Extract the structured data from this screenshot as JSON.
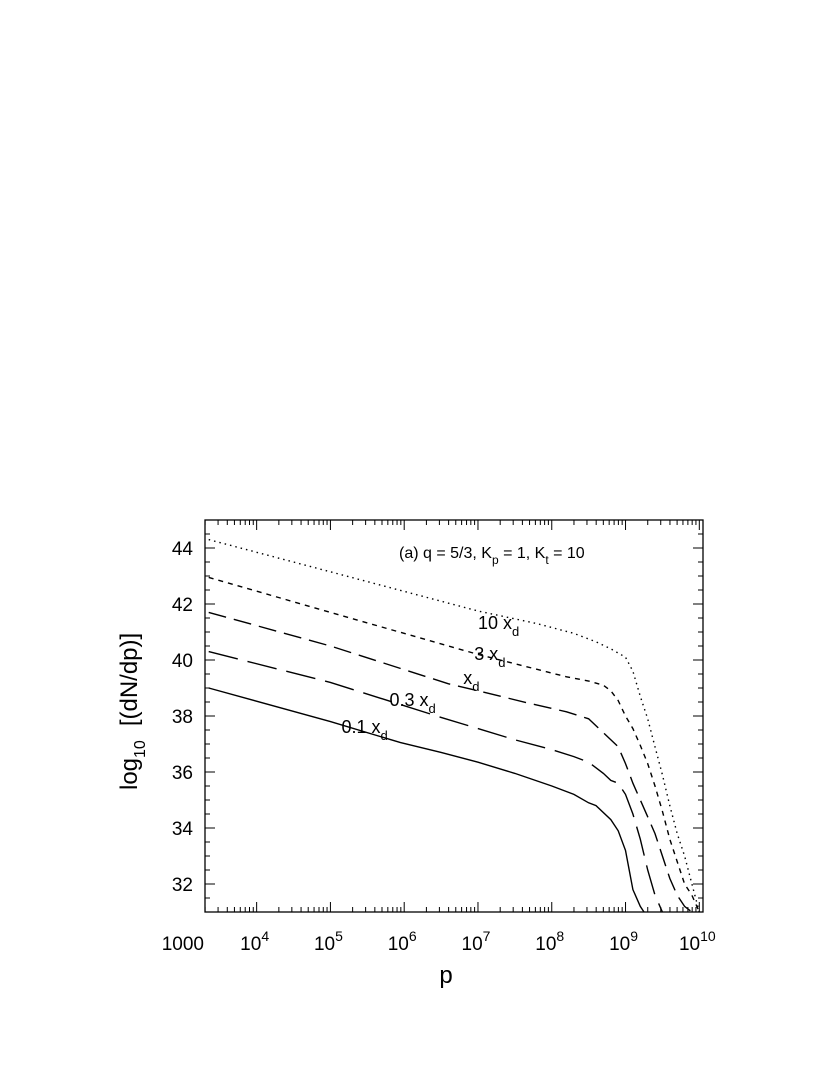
{
  "chart_data": {
    "type": "line",
    "annotation": {
      "prefix": "(a)   q  =  5/3,  K",
      "kp_sub": "p",
      "mid": "  =  1,  K",
      "kt_sub": "t",
      "suffix": "  =  10"
    },
    "xlabel": "p",
    "ylabel": {
      "main": "log",
      "sub": "10",
      "rest": "[(dN/dp)]"
    },
    "xscale": "log",
    "xlim": [
      3.3,
      10.05
    ],
    "ylim": [
      31,
      45
    ],
    "x_ticks": [
      {
        "value": 3,
        "label": "1000"
      },
      {
        "value": 4,
        "base": "10",
        "exp": "4"
      },
      {
        "value": 5,
        "base": "10",
        "exp": "5"
      },
      {
        "value": 6,
        "base": "10",
        "exp": "6"
      },
      {
        "value": 7,
        "base": "10",
        "exp": "7"
      },
      {
        "value": 8,
        "base": "10",
        "exp": "8"
      },
      {
        "value": 9,
        "base": "10",
        "exp": "9"
      },
      {
        "value": 10,
        "base": "10",
        "exp": "10"
      }
    ],
    "y_ticks": [
      32,
      34,
      36,
      38,
      40,
      42,
      44
    ],
    "series": [
      {
        "name": "10 x",
        "name_sub": "d",
        "dash": "1.5,4",
        "label_at": [
          7.0,
          41.1
        ],
        "log10_x": [
          3.35,
          5.0,
          7.0,
          7.8,
          8.3,
          8.6,
          8.8,
          9.0,
          9.1,
          9.2,
          9.3,
          9.4,
          9.5,
          9.6,
          9.7,
          9.8,
          9.9,
          10.0
        ],
        "values": [
          44.3,
          43.15,
          41.75,
          41.3,
          40.95,
          40.65,
          40.4,
          40.1,
          39.6,
          38.7,
          37.9,
          36.9,
          35.9,
          34.8,
          33.8,
          33.0,
          32.0,
          31.0
        ]
      },
      {
        "name": "3 x",
        "name_sub": "d",
        "dash": "5,5",
        "label_at": [
          6.95,
          40.0
        ],
        "log10_x": [
          3.35,
          5.0,
          7.0,
          7.6,
          8.2,
          8.5,
          8.7,
          8.8,
          8.9,
          9.0,
          9.1,
          9.2,
          9.3,
          9.4,
          9.5,
          9.6,
          9.7,
          9.8,
          9.9,
          10.0
        ],
        "values": [
          42.95,
          41.7,
          40.2,
          39.8,
          39.4,
          39.25,
          39.1,
          38.9,
          38.55,
          38.0,
          37.55,
          36.95,
          36.3,
          35.5,
          34.6,
          33.6,
          32.8,
          32.0,
          31.6,
          31.0
        ]
      },
      {
        "name": "x",
        "name_sub": "d",
        "dash": "18,8",
        "label_at": [
          6.8,
          39.15
        ],
        "log10_x": [
          3.35,
          5.0,
          6.6,
          7.0,
          7.7,
          8.2,
          8.5,
          8.7,
          8.9,
          9.0,
          9.1,
          9.2,
          9.3,
          9.4,
          9.5,
          9.6,
          9.7,
          9.8,
          9.9
        ],
        "values": [
          41.7,
          40.5,
          39.15,
          38.9,
          38.45,
          38.15,
          37.9,
          37.4,
          36.9,
          36.3,
          35.6,
          35.0,
          34.4,
          33.8,
          33.0,
          32.2,
          31.6,
          31.2,
          31.0
        ]
      },
      {
        "name": "0.3 x",
        "name_sub": "d",
        "dash": "30,10",
        "label_at": [
          5.8,
          38.35
        ],
        "log10_x": [
          3.35,
          5.0,
          6.5,
          7.0,
          7.5,
          8.0,
          8.3,
          8.5,
          8.7,
          8.8,
          8.9,
          9.0,
          9.1,
          9.2,
          9.3,
          9.4,
          9.5
        ],
        "values": [
          40.3,
          39.2,
          37.95,
          37.55,
          37.15,
          36.8,
          36.55,
          36.35,
          35.95,
          35.7,
          35.6,
          35.2,
          34.5,
          33.6,
          32.5,
          31.6,
          31.0
        ]
      },
      {
        "name": "0.1 x",
        "name_sub": "d",
        "dash": "",
        "label_at": [
          5.15,
          37.4
        ],
        "log10_x": [
          3.35,
          5.0,
          5.95,
          6.5,
          7.0,
          7.5,
          8.0,
          8.3,
          8.5,
          8.6,
          8.8,
          8.9,
          9.0,
          9.05,
          9.1,
          9.2,
          9.25
        ],
        "values": [
          39.0,
          37.8,
          37.05,
          36.7,
          36.35,
          35.95,
          35.5,
          35.2,
          34.9,
          34.8,
          34.3,
          33.9,
          33.2,
          32.5,
          31.8,
          31.2,
          31.0
        ]
      }
    ]
  }
}
